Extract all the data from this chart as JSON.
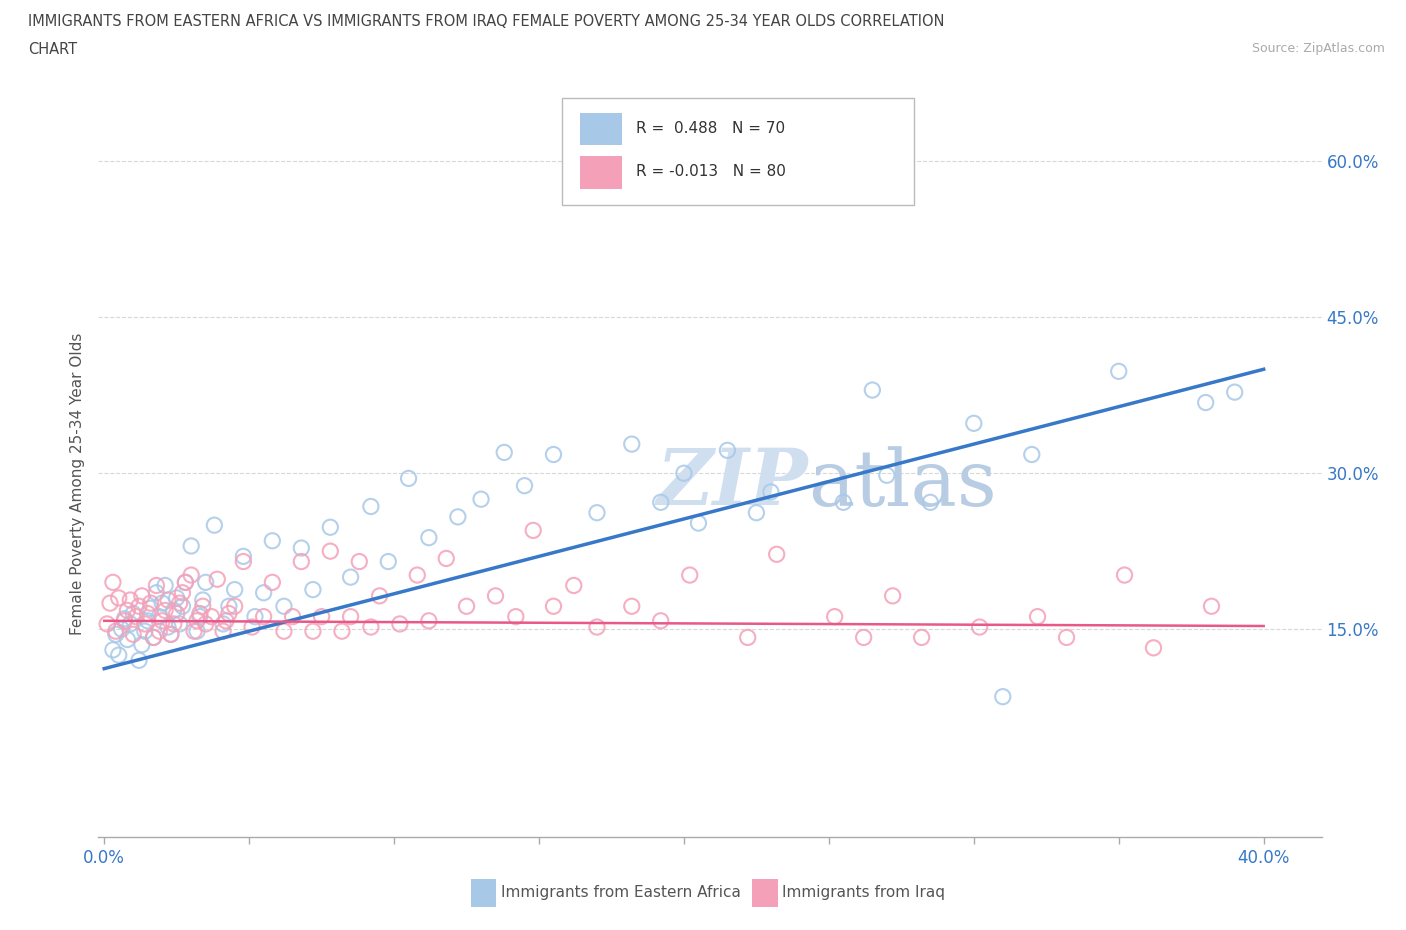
{
  "title_line1": "IMMIGRANTS FROM EASTERN AFRICA VS IMMIGRANTS FROM IRAQ FEMALE POVERTY AMONG 25-34 YEAR OLDS CORRELATION",
  "title_line2": "CHART",
  "source_text": "Source: ZipAtlas.com",
  "ylabel": "Female Poverty Among 25-34 Year Olds",
  "xlim": [
    -0.002,
    0.42
  ],
  "ylim": [
    -0.05,
    0.63
  ],
  "xticks": [
    0.0,
    0.05,
    0.1,
    0.15,
    0.2,
    0.25,
    0.3,
    0.35,
    0.4
  ],
  "xticklabels": [
    "0.0%",
    "",
    "",
    "",
    "",
    "",
    "",
    "",
    "40.0%"
  ],
  "ytick_positions": [
    0.15,
    0.3,
    0.45,
    0.6
  ],
  "ytick_labels": [
    "15.0%",
    "30.0%",
    "45.0%",
    "60.0%"
  ],
  "legend_R1": "R =  0.488",
  "legend_N1": "N = 70",
  "legend_R2": "R = -0.013",
  "legend_N2": "N = 80",
  "series1_label": "Immigrants from Eastern Africa",
  "series2_label": "Immigrants from Iraq",
  "color_blue": "#a8c8e8",
  "color_pink": "#f4a0b8",
  "trendline1_color": "#3878c8",
  "trendline2_color": "#e85888",
  "grid_color": "#d8d8d8",
  "title_color": "#555555",
  "axis_label_color": "#555555",
  "watermark_color": "#d0dff0",
  "scatter1_x": [
    0.003,
    0.004,
    0.005,
    0.006,
    0.007,
    0.008,
    0.009,
    0.01,
    0.012,
    0.013,
    0.014,
    0.015,
    0.016,
    0.017,
    0.018,
    0.019,
    0.02,
    0.021,
    0.022,
    0.023,
    0.024,
    0.025,
    0.026,
    0.027,
    0.028,
    0.03,
    0.032,
    0.033,
    0.034,
    0.035,
    0.038,
    0.041,
    0.043,
    0.045,
    0.048,
    0.052,
    0.055,
    0.058,
    0.062,
    0.068,
    0.072,
    0.078,
    0.085,
    0.092,
    0.098,
    0.105,
    0.112,
    0.122,
    0.13,
    0.138,
    0.145,
    0.155,
    0.17,
    0.182,
    0.192,
    0.2,
    0.205,
    0.215,
    0.225,
    0.23,
    0.255,
    0.265,
    0.27,
    0.285,
    0.3,
    0.32,
    0.35,
    0.38,
    0.39,
    0.31
  ],
  "scatter1_y": [
    0.13,
    0.145,
    0.125,
    0.15,
    0.16,
    0.14,
    0.155,
    0.165,
    0.12,
    0.135,
    0.148,
    0.158,
    0.17,
    0.142,
    0.185,
    0.162,
    0.175,
    0.192,
    0.152,
    0.145,
    0.168,
    0.18,
    0.155,
    0.172,
    0.195,
    0.23,
    0.148,
    0.162,
    0.178,
    0.195,
    0.25,
    0.155,
    0.172,
    0.188,
    0.22,
    0.162,
    0.185,
    0.235,
    0.172,
    0.228,
    0.188,
    0.248,
    0.2,
    0.268,
    0.215,
    0.295,
    0.238,
    0.258,
    0.275,
    0.32,
    0.288,
    0.318,
    0.262,
    0.328,
    0.272,
    0.3,
    0.252,
    0.322,
    0.262,
    0.282,
    0.272,
    0.38,
    0.298,
    0.272,
    0.348,
    0.318,
    0.398,
    0.368,
    0.378,
    0.085
  ],
  "scatter2_x": [
    0.001,
    0.002,
    0.003,
    0.004,
    0.005,
    0.007,
    0.008,
    0.009,
    0.01,
    0.011,
    0.012,
    0.013,
    0.014,
    0.015,
    0.016,
    0.017,
    0.018,
    0.019,
    0.02,
    0.021,
    0.022,
    0.023,
    0.024,
    0.025,
    0.026,
    0.027,
    0.028,
    0.03,
    0.031,
    0.032,
    0.033,
    0.034,
    0.035,
    0.037,
    0.039,
    0.041,
    0.042,
    0.043,
    0.045,
    0.048,
    0.051,
    0.055,
    0.058,
    0.062,
    0.065,
    0.068,
    0.072,
    0.075,
    0.078,
    0.082,
    0.085,
    0.088,
    0.092,
    0.095,
    0.102,
    0.108,
    0.112,
    0.118,
    0.125,
    0.135,
    0.142,
    0.148,
    0.155,
    0.162,
    0.17,
    0.182,
    0.192,
    0.202,
    0.222,
    0.232,
    0.252,
    0.262,
    0.272,
    0.282,
    0.302,
    0.322,
    0.332,
    0.352,
    0.362,
    0.382
  ],
  "scatter2_y": [
    0.155,
    0.175,
    0.195,
    0.148,
    0.18,
    0.158,
    0.168,
    0.178,
    0.145,
    0.162,
    0.172,
    0.182,
    0.155,
    0.165,
    0.175,
    0.142,
    0.192,
    0.148,
    0.158,
    0.168,
    0.178,
    0.145,
    0.155,
    0.165,
    0.175,
    0.185,
    0.195,
    0.202,
    0.148,
    0.158,
    0.165,
    0.172,
    0.155,
    0.162,
    0.198,
    0.148,
    0.158,
    0.165,
    0.172,
    0.215,
    0.152,
    0.162,
    0.195,
    0.148,
    0.162,
    0.215,
    0.148,
    0.162,
    0.225,
    0.148,
    0.162,
    0.215,
    0.152,
    0.182,
    0.155,
    0.202,
    0.158,
    0.218,
    0.172,
    0.182,
    0.162,
    0.245,
    0.172,
    0.192,
    0.152,
    0.172,
    0.158,
    0.202,
    0.142,
    0.222,
    0.162,
    0.142,
    0.182,
    0.142,
    0.152,
    0.162,
    0.142,
    0.202,
    0.132,
    0.172
  ],
  "trendline1_x": [
    0.0,
    0.4
  ],
  "trendline1_y": [
    0.112,
    0.4
  ],
  "trendline2_x": [
    0.0,
    0.4
  ],
  "trendline2_y": [
    0.158,
    0.153
  ]
}
